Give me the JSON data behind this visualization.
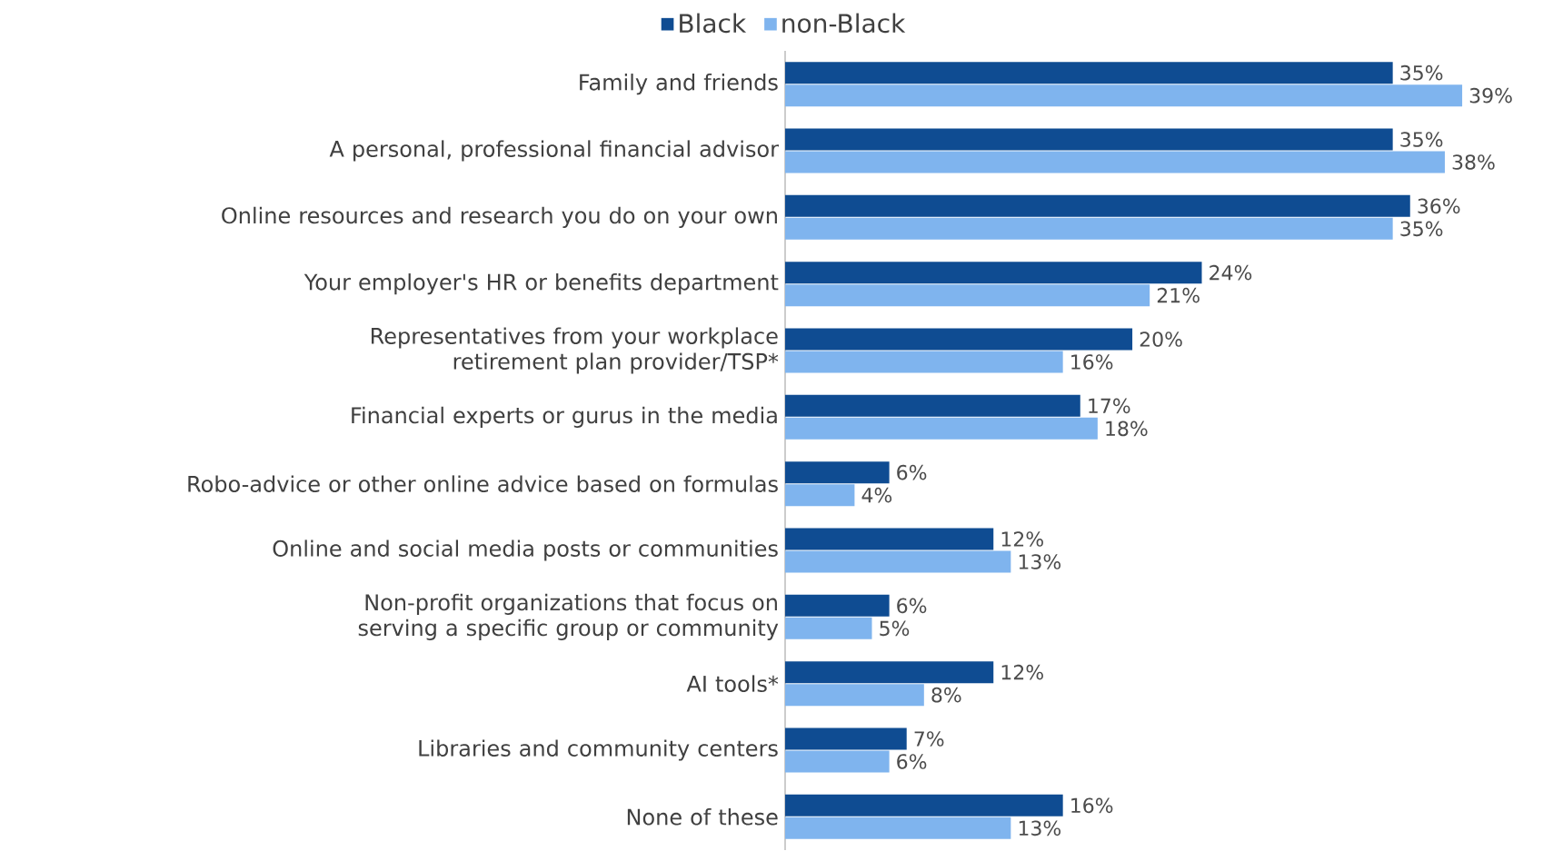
{
  "chart_data": {
    "type": "bar",
    "orientation": "horizontal",
    "legend": "top",
    "categories": [
      "Family and friends",
      "A personal, professional financial advisor",
      "Online resources and research you do on your own",
      "Your employer's HR or benefits department",
      "Representatives from your workplace retirement plan provider/TSP*",
      "Financial experts or gurus in the media",
      "Robo-advice or other online advice based on formulas",
      "Online and social media posts or communities",
      "Non-profit organizations that focus on serving a specific group or community",
      "AI tools*",
      "Libraries and community centers",
      "None of these"
    ],
    "series": [
      {
        "name": "Black",
        "color": "#0f4c92",
        "values": [
          35,
          35,
          36,
          24,
          20,
          17,
          6,
          12,
          6,
          12,
          7,
          16
        ],
        "value_labels": [
          "35%",
          "35%",
          "36%",
          "24%",
          "20%",
          "17%",
          "6%",
          "12%",
          "6%",
          "12%",
          "7%",
          "16%"
        ]
      },
      {
        "name": "non-Black",
        "color": "#7fb4ee",
        "values": [
          39,
          38,
          35,
          21,
          16,
          18,
          4,
          13,
          5,
          8,
          6,
          13
        ],
        "value_labels": [
          "39%",
          "38%",
          "35%",
          "21%",
          "16%",
          "18%",
          "4%",
          "13%",
          "5%",
          "8%",
          "6%",
          "13%"
        ]
      }
    ]
  }
}
